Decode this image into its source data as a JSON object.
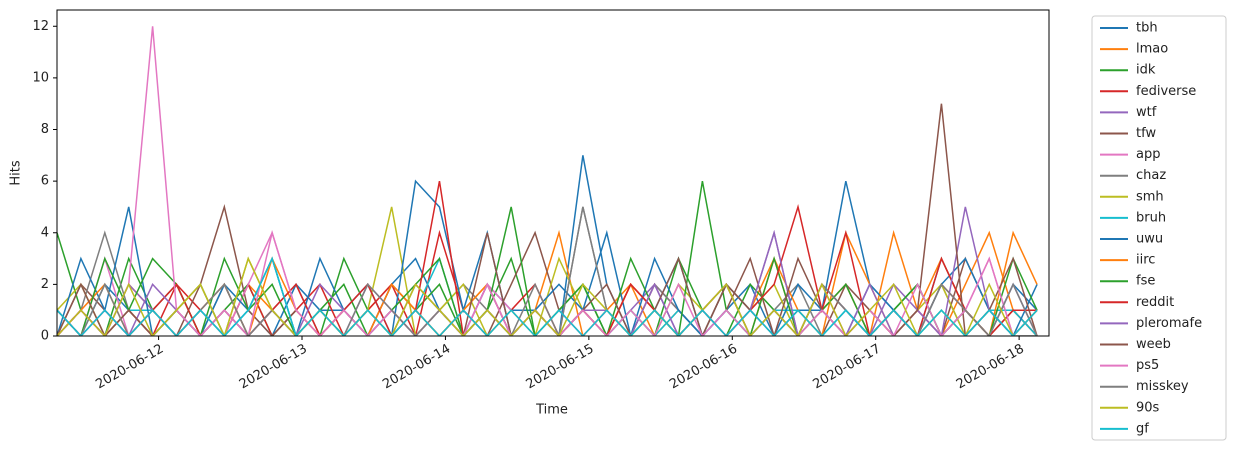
{
  "chart_data": {
    "type": "line",
    "xlabel": "Time",
    "ylabel": "Hits",
    "x": [
      0,
      4,
      8,
      12,
      16,
      20,
      24,
      28,
      32,
      36,
      40,
      44,
      48,
      52,
      56,
      60,
      64,
      68,
      72,
      76,
      80,
      84,
      88,
      92,
      96,
      100,
      104,
      108,
      112,
      116,
      120,
      124,
      128,
      132,
      136,
      140,
      144,
      148,
      152,
      156,
      160,
      164
    ],
    "xlim": [
      0,
      166
    ],
    "xticks": [
      {
        "value": 17,
        "label": "2020-06-12"
      },
      {
        "value": 41,
        "label": "2020-06-13"
      },
      {
        "value": 65,
        "label": "2020-06-14"
      },
      {
        "value": 89,
        "label": "2020-06-15"
      },
      {
        "value": 113,
        "label": "2020-06-16"
      },
      {
        "value": 137,
        "label": "2020-06-17"
      },
      {
        "value": 161,
        "label": "2020-06-18"
      }
    ],
    "ylim": [
      0,
      12.63
    ],
    "yticks": [
      0,
      2,
      4,
      6,
      8,
      10,
      12
    ],
    "grid": false,
    "legend": "outside right",
    "series": [
      {
        "name": "tbh",
        "color": "#1f77b4",
        "values": [
          1,
          0,
          2,
          1,
          0,
          1,
          2,
          0,
          1,
          0,
          2,
          1,
          1,
          0,
          2,
          3,
          1,
          0,
          2,
          1,
          1,
          0,
          7,
          2,
          0,
          1,
          3,
          0,
          1,
          2,
          0,
          1,
          1,
          0,
          2,
          1,
          0,
          3,
          1,
          0,
          2,
          1
        ]
      },
      {
        "name": "lmao",
        "color": "#ff7f0e",
        "values": [
          0,
          1,
          0,
          2,
          1,
          0,
          1,
          0,
          2,
          1,
          0,
          1,
          0,
          1,
          2,
          1,
          0,
          1,
          2,
          0,
          1,
          4,
          0,
          1,
          2,
          0,
          1,
          0,
          2,
          1,
          3,
          0,
          1,
          2,
          0,
          4,
          1,
          0,
          2,
          4,
          1,
          0
        ]
      },
      {
        "name": "idk",
        "color": "#2ca02c",
        "values": [
          4,
          1,
          0,
          3,
          1,
          2,
          0,
          1,
          2,
          0,
          1,
          0,
          3,
          1,
          0,
          1,
          2,
          0,
          1,
          3,
          0,
          1,
          2,
          0,
          1,
          0,
          3,
          1,
          0,
          2,
          1,
          0,
          2,
          1,
          0,
          1,
          2,
          0,
          1,
          0,
          1,
          0
        ]
      },
      {
        "name": "fediverse",
        "color": "#d62728",
        "values": [
          1,
          0,
          1,
          0,
          1,
          2,
          1,
          0,
          2,
          0,
          1,
          2,
          0,
          1,
          2,
          0,
          4,
          1,
          0,
          1,
          2,
          0,
          1,
          0,
          2,
          1,
          0,
          1,
          2,
          0,
          1,
          0,
          2,
          1,
          0,
          1,
          0,
          2,
          1,
          0,
          1,
          0
        ]
      },
      {
        "name": "wtf",
        "color": "#9467bd",
        "values": [
          0,
          1,
          0,
          2,
          1,
          0,
          1,
          2,
          0,
          1,
          0,
          1,
          0,
          2,
          1,
          0,
          1,
          0,
          2,
          0,
          1,
          0,
          1,
          0,
          1,
          2,
          0,
          1,
          0,
          1,
          4,
          0,
          2,
          1,
          0,
          2,
          1,
          0,
          1,
          0,
          2,
          0
        ]
      },
      {
        "name": "tfw",
        "color": "#8c564b",
        "values": [
          0,
          2,
          1,
          0,
          1,
          0,
          2,
          5,
          1,
          0,
          1,
          0,
          1,
          0,
          2,
          1,
          0,
          1,
          0,
          2,
          4,
          1,
          0,
          1,
          0,
          2,
          1,
          0,
          1,
          3,
          0,
          1,
          0,
          2,
          1,
          0,
          1,
          0,
          3,
          1,
          0,
          1
        ]
      },
      {
        "name": "app",
        "color": "#e377c2",
        "values": [
          1,
          0,
          3,
          0,
          1,
          0,
          1,
          0,
          2,
          4,
          1,
          0,
          1,
          0,
          1,
          0,
          1,
          0,
          2,
          1,
          0,
          1,
          0,
          1,
          0,
          2,
          1,
          0,
          1,
          0,
          1,
          0,
          2,
          0,
          1,
          0,
          1,
          0,
          1,
          3,
          0,
          1
        ]
      },
      {
        "name": "chaz",
        "color": "#7f7f7f",
        "values": [
          0,
          1,
          4,
          1,
          0,
          1,
          0,
          2,
          0,
          1,
          2,
          0,
          1,
          0,
          1,
          0,
          1,
          2,
          1,
          0,
          1,
          0,
          5,
          1,
          0,
          2,
          1,
          0,
          1,
          0,
          1,
          2,
          0,
          1,
          0,
          1,
          0,
          2,
          0,
          1,
          0,
          0
        ]
      },
      {
        "name": "smh",
        "color": "#bcbd22",
        "values": [
          1,
          2,
          0,
          1,
          0,
          1,
          2,
          0,
          3,
          1,
          0,
          1,
          0,
          1,
          5,
          0,
          1,
          2,
          0,
          1,
          0,
          3,
          1,
          0,
          1,
          0,
          2,
          1,
          0,
          1,
          2,
          0,
          1,
          0,
          1,
          0,
          1,
          2,
          0,
          1,
          0,
          1
        ]
      },
      {
        "name": "bruh",
        "color": "#17becf",
        "values": [
          0,
          1,
          0,
          1,
          1,
          0,
          1,
          0,
          1,
          3,
          0,
          1,
          0,
          1,
          0,
          1,
          3,
          0,
          1,
          0,
          1,
          0,
          1,
          0,
          1,
          0,
          1,
          0,
          1,
          0,
          1,
          1,
          0,
          1,
          0,
          1,
          0,
          1,
          0,
          1,
          1,
          0
        ]
      },
      {
        "name": "uwu",
        "color": "#1f77b4",
        "values": [
          0,
          3,
          1,
          5,
          0,
          1,
          0,
          2,
          1,
          3,
          0,
          3,
          1,
          2,
          0,
          6,
          5,
          1,
          4,
          0,
          1,
          2,
          1,
          4,
          0,
          3,
          1,
          0,
          2,
          1,
          0,
          2,
          1,
          6,
          2,
          1,
          0,
          2,
          3,
          1,
          0,
          2
        ]
      },
      {
        "name": "iirc",
        "color": "#ff7f0e",
        "values": [
          0,
          1,
          2,
          0,
          1,
          0,
          1,
          2,
          0,
          3,
          1,
          0,
          1,
          0,
          2,
          1,
          0,
          1,
          2,
          0,
          1,
          0,
          1,
          0,
          2,
          1,
          0,
          1,
          2,
          0,
          3,
          1,
          0,
          4,
          2,
          0,
          1,
          3,
          1,
          0,
          4,
          2
        ]
      },
      {
        "name": "fse",
        "color": "#2ca02c",
        "values": [
          1,
          0,
          3,
          1,
          3,
          2,
          0,
          3,
          1,
          2,
          0,
          1,
          2,
          0,
          1,
          2,
          3,
          0,
          1,
          5,
          0,
          1,
          2,
          0,
          3,
          1,
          0,
          6,
          1,
          0,
          3,
          0,
          1,
          2,
          0,
          1,
          2,
          0,
          1,
          0,
          3,
          1
        ]
      },
      {
        "name": "reddit",
        "color": "#d62728",
        "values": [
          0,
          1,
          0,
          1,
          0,
          2,
          0,
          1,
          0,
          1,
          2,
          0,
          1,
          2,
          0,
          1,
          6,
          0,
          1,
          0,
          1,
          0,
          1,
          0,
          2,
          1,
          0,
          1,
          0,
          1,
          2,
          5,
          1,
          4,
          0,
          1,
          0,
          3,
          1,
          0,
          1,
          1
        ]
      },
      {
        "name": "pleromafe",
        "color": "#9467bd",
        "values": [
          1,
          0,
          1,
          0,
          2,
          1,
          0,
          1,
          0,
          1,
          0,
          2,
          1,
          0,
          1,
          0,
          1,
          0,
          2,
          0,
          1,
          0,
          1,
          1,
          0,
          2,
          0,
          1,
          0,
          1,
          4,
          0,
          1,
          0,
          2,
          0,
          1,
          0,
          5,
          1,
          0,
          1
        ]
      },
      {
        "name": "weeb",
        "color": "#8c564b",
        "values": [
          0,
          2,
          0,
          1,
          0,
          1,
          0,
          1,
          0,
          1,
          0,
          1,
          0,
          1,
          0,
          2,
          1,
          0,
          4,
          0,
          1,
          0,
          1,
          2,
          0,
          1,
          3,
          0,
          2,
          1,
          0,
          3,
          1,
          0,
          1,
          0,
          1,
          9,
          0,
          1,
          3,
          0
        ]
      },
      {
        "name": "ps5",
        "color": "#e377c2",
        "values": [
          0,
          1,
          0,
          2,
          12,
          1,
          0,
          1,
          0,
          4,
          1,
          0,
          1,
          0,
          1,
          0,
          1,
          0,
          2,
          0,
          1,
          0,
          1,
          0,
          1,
          0,
          2,
          0,
          1,
          0,
          1,
          0,
          1,
          0,
          1,
          0,
          2,
          0,
          1,
          3,
          0,
          1
        ]
      },
      {
        "name": "misskey",
        "color": "#7f7f7f",
        "values": [
          1,
          0,
          2,
          0,
          1,
          0,
          1,
          2,
          0,
          1,
          0,
          1,
          0,
          2,
          1,
          0,
          1,
          0,
          1,
          0,
          2,
          0,
          5,
          1,
          0,
          1,
          0,
          1,
          2,
          0,
          1,
          0,
          2,
          1,
          0,
          1,
          0,
          2,
          1,
          0,
          2,
          0
        ]
      },
      {
        "name": "90s",
        "color": "#bcbd22",
        "values": [
          0,
          1,
          0,
          2,
          0,
          1,
          2,
          0,
          3,
          1,
          0,
          1,
          0,
          1,
          0,
          2,
          1,
          0,
          1,
          0,
          1,
          0,
          2,
          1,
          0,
          1,
          0,
          1,
          2,
          0,
          1,
          0,
          2,
          0,
          1,
          2,
          0,
          1,
          0,
          2,
          0,
          1
        ]
      },
      {
        "name": "gf",
        "color": "#17becf",
        "values": [
          1,
          0,
          1,
          0,
          1,
          0,
          1,
          0,
          1,
          3,
          0,
          1,
          0,
          1,
          0,
          1,
          0,
          1,
          0,
          1,
          0,
          1,
          0,
          1,
          0,
          1,
          0,
          1,
          0,
          1,
          0,
          1,
          0,
          1,
          0,
          1,
          0,
          1,
          0,
          1,
          0,
          1
        ]
      }
    ]
  }
}
